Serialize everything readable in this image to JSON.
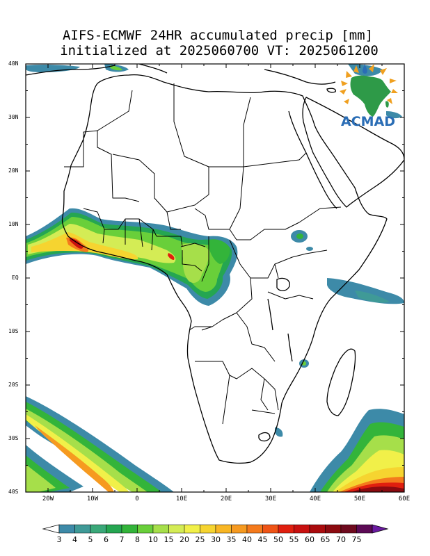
{
  "title_line1": "AIFS-ECMWF 24HR accumulated precip [mm]",
  "title_line2": "initialized at 2025060700 VT: 2025061200",
  "lat_labels": [
    {
      "lat": 40,
      "text": "40N"
    },
    {
      "lat": 30,
      "text": "30N"
    },
    {
      "lat": 20,
      "text": "20N"
    },
    {
      "lat": 10,
      "text": "10N"
    },
    {
      "lat": 0,
      "text": "EQ"
    },
    {
      "lat": -10,
      "text": "10S"
    },
    {
      "lat": -20,
      "text": "20S"
    },
    {
      "lat": -30,
      "text": "30S"
    },
    {
      "lat": -40,
      "text": "40S"
    }
  ],
  "lon_labels": [
    {
      "lon": -20,
      "text": "20W"
    },
    {
      "lon": -10,
      "text": "10W"
    },
    {
      "lon": 0,
      "text": "0"
    },
    {
      "lon": 10,
      "text": "10E"
    },
    {
      "lon": 20,
      "text": "20E"
    },
    {
      "lon": 30,
      "text": "30E"
    },
    {
      "lon": 40,
      "text": "40E"
    },
    {
      "lon": 50,
      "text": "50E"
    },
    {
      "lon": 60,
      "text": "60E"
    }
  ],
  "extent": {
    "lon_min": -25,
    "lon_max": 60,
    "lat_min": -40,
    "lat_max": 40
  },
  "colorbar": {
    "labels": [
      "3",
      "4",
      "5",
      "6",
      "7",
      "8",
      "10",
      "15",
      "20",
      "25",
      "30",
      "35",
      "40",
      "45",
      "50",
      "55",
      "60",
      "65",
      "70",
      "75"
    ],
    "colors": [
      "#3d8aa8",
      "#3f9a97",
      "#3aa879",
      "#25a651",
      "#33b43a",
      "#69cf3a",
      "#a6df4a",
      "#d4ec55",
      "#f1f049",
      "#f6d430",
      "#f8b624",
      "#f69a20",
      "#f47a1c",
      "#ef5416",
      "#e01f0f",
      "#c8100f",
      "#aa0b0d",
      "#8c0a10",
      "#6e0a1e",
      "#5c0a55"
    ],
    "under_color": "#ffffff",
    "over_color": "#6a1aa0"
  },
  "logo": {
    "text": "ACMAD",
    "text_color": "#2a6db5",
    "continent_color": "#2e9a48",
    "ray_color": "#f0a020"
  }
}
